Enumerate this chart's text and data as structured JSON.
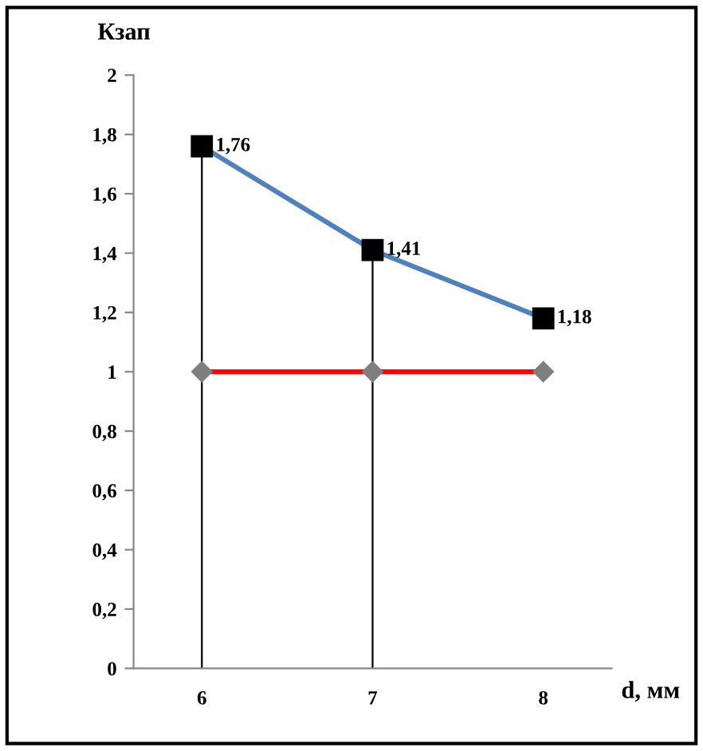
{
  "chart_data": {
    "type": "line",
    "ylabel": "Кзап",
    "xlabel": "d, мм",
    "x": [
      6,
      7,
      8
    ],
    "xlim": [
      5.6,
      8.4
    ],
    "xticks": [
      6,
      7,
      8
    ],
    "ylim": [
      0,
      2
    ],
    "yticks": [
      0,
      {
        "value": 0.2,
        "label": "0,2"
      },
      {
        "value": 0.4,
        "label": "0,4"
      },
      {
        "value": 0.6,
        "label": "0,6"
      },
      {
        "value": 0.8,
        "label": "0,8"
      },
      1,
      {
        "value": 1.2,
        "label": "1,2"
      },
      {
        "value": 1.4,
        "label": "1,4"
      },
      {
        "value": 1.6,
        "label": "1,6"
      },
      {
        "value": 1.8,
        "label": "1,8"
      },
      2
    ],
    "series": [
      {
        "color": "#4f81bd",
        "values": [
          1.76,
          1.41,
          1.18
        ],
        "marker": "square",
        "colors": [
          "#000000",
          "#000000",
          "#000000"
        ],
        "value_labels": [
          "1,76",
          "1,41",
          "1,18"
        ]
      },
      {
        "color": "#ff0000",
        "values": [
          1,
          1,
          1
        ],
        "marker": "diamond",
        "colors": [
          "#7f7f7f",
          "#7f7f7f",
          "#7f7f7f"
        ]
      }
    ],
    "ref_lines": [
      {
        "axis": "x",
        "value": 6,
        "color": "#000000"
      },
      {
        "axis": "x",
        "value": 7,
        "color": "#000000"
      }
    ],
    "grid": false,
    "legend": false
  }
}
